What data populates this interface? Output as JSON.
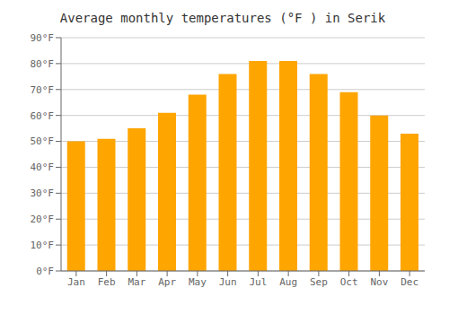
{
  "chart_data": {
    "type": "bar",
    "title": "Average monthly temperatures (°F ) in Serik",
    "categories": [
      "Jan",
      "Feb",
      "Mar",
      "Apr",
      "May",
      "Jun",
      "Jul",
      "Aug",
      "Sep",
      "Oct",
      "Nov",
      "Dec"
    ],
    "values": [
      50,
      51,
      55,
      61,
      68,
      76,
      81,
      81,
      76,
      69,
      60,
      53
    ],
    "color": "#FFA500",
    "ylim": [
      0,
      90
    ],
    "yticks": [
      {
        "value": 0,
        "label": "0°F"
      },
      {
        "value": 10,
        "label": "10°F"
      },
      {
        "value": 20,
        "label": "20°F"
      },
      {
        "value": 30,
        "label": "30°F"
      },
      {
        "value": 40,
        "label": "40°F"
      },
      {
        "value": 50,
        "label": "50°F"
      },
      {
        "value": 60,
        "label": "60°F"
      },
      {
        "value": 70,
        "label": "70°F"
      },
      {
        "value": 80,
        "label": "80°F"
      },
      {
        "value": 90,
        "label": "90°F"
      }
    ],
    "grid": true
  }
}
